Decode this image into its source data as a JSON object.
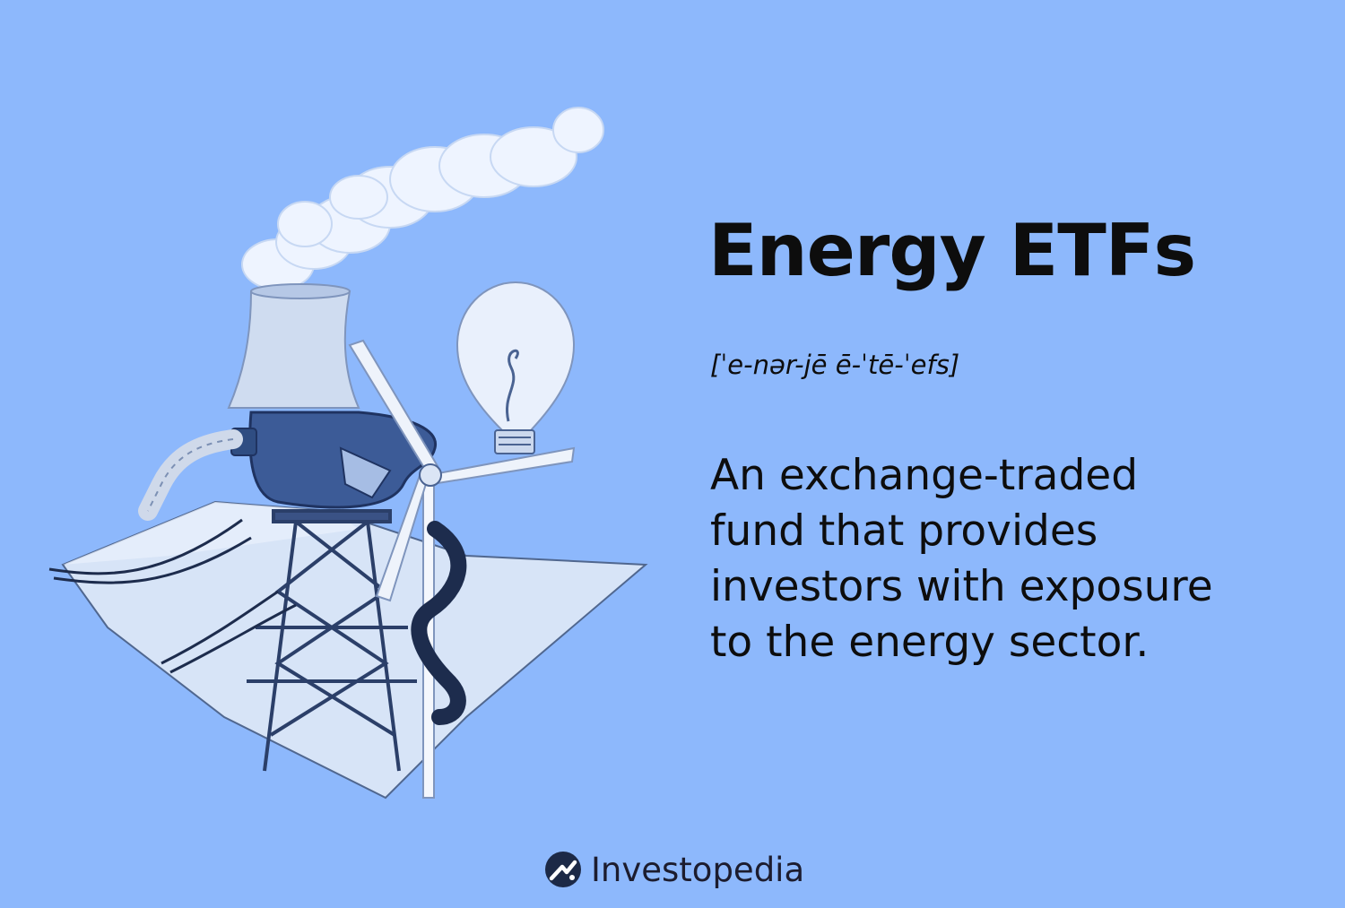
{
  "card": {
    "title": "Energy ETFs",
    "pronunciation": "[ˈe-nər-jē ē-ˈtē-ˈefs]",
    "definition_lines": [
      "An exchange-traded",
      "fund that provides",
      "investors with exposure",
      "to the energy sector."
    ],
    "background_color": "#8db8fc"
  },
  "brand": {
    "name": "Investopedia",
    "logo_icon": "investopedia-logo-icon"
  },
  "illustration": {
    "icon": "energy-illustration",
    "elements": [
      "smoke-cloud",
      "cooling-tower",
      "fuel-nozzle",
      "light-bulb",
      "wind-turbine",
      "transmission-tower",
      "power-cables",
      "land-tile"
    ]
  }
}
